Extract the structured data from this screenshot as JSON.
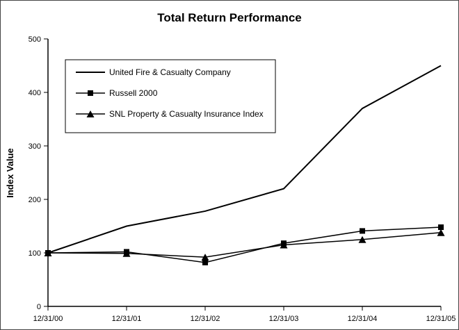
{
  "chart_data": {
    "type": "line",
    "title": "Total Return Performance",
    "ylabel": "Index Value",
    "xlabel": "",
    "ylim": [
      0,
      500
    ],
    "y_ticks": [
      0,
      100,
      200,
      300,
      400,
      500
    ],
    "grid": false,
    "legend_position": "inside-top-left",
    "categories": [
      "12/31/00",
      "12/31/01",
      "12/31/02",
      "12/31/03",
      "12/31/04",
      "12/31/05"
    ],
    "series": [
      {
        "name": "United Fire & Casualty Company",
        "marker": "none",
        "color": "#000000",
        "values": [
          100,
          150,
          178,
          220,
          370,
          450
        ]
      },
      {
        "name": "Russell 2000",
        "marker": "square",
        "color": "#000000",
        "values": [
          100,
          102,
          82,
          118,
          141,
          148
        ]
      },
      {
        "name": "SNL Property & Casualty Insurance Index",
        "marker": "triangle",
        "color": "#000000",
        "values": [
          100,
          99,
          92,
          115,
          125,
          138
        ]
      }
    ]
  }
}
